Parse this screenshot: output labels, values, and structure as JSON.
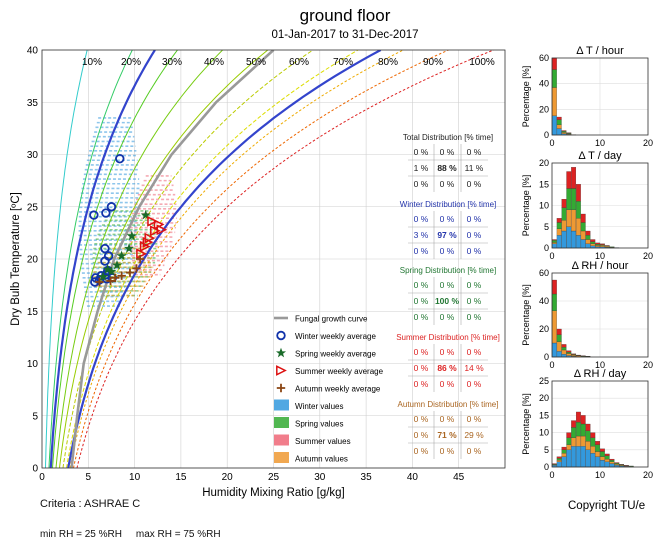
{
  "title": "ground floor",
  "subtitle": "01-Jan-2017 to 31-Dec-2017",
  "criteria": "Criteria : ASHRAE C",
  "limits": "min RH = 25 %RH     max RH = 75 %RH",
  "copyright": "Copyright TU/e",
  "chart_data": [
    {
      "type": "scatter",
      "name": "psychrometric-chart",
      "xlabel": "Humidity Mixing Ratio [g/kg]",
      "ylabel": "Dry Bulb Temperature [ºC]",
      "xlim": [
        0,
        50
      ],
      "ylim": [
        0,
        40
      ],
      "xticks": [
        0,
        5,
        10,
        15,
        20,
        25,
        30,
        35,
        40,
        45
      ],
      "yticks": [
        0,
        5,
        10,
        15,
        20,
        25,
        30,
        35,
        40
      ],
      "grid": true,
      "rh_labels": [
        "10%",
        "20%",
        "30%",
        "40%",
        "50%",
        "60%",
        "70%",
        "80%",
        "90%",
        "100%"
      ],
      "rh_curves": [
        {
          "rh": 10,
          "color": "#33cccc"
        },
        {
          "rh": 20,
          "color": "#33cc66"
        },
        {
          "rh": 30,
          "color": "#55cc22"
        },
        {
          "rh": 40,
          "color": "#77cc11"
        },
        {
          "rh": 50,
          "color": "#99cc00"
        },
        {
          "rh": 60,
          "color": "#bbcc00"
        },
        {
          "rh": 70,
          "color": "#dddd00"
        },
        {
          "rh": 80,
          "color": "#eeaa00"
        },
        {
          "rh": 90,
          "color": "#ee6600"
        },
        {
          "rh": 100,
          "color": "#dd2222"
        }
      ],
      "criteria_curves": [
        {
          "rh": 25,
          "color": "#3344cc"
        },
        {
          "rh": 75,
          "color": "#3344cc"
        }
      ],
      "fungal_curve": [
        [
          3.2,
          0
        ],
        [
          3.8,
          5
        ],
        [
          4.5,
          10
        ],
        [
          6.0,
          15
        ],
        [
          7.8,
          20
        ],
        [
          10.5,
          25
        ],
        [
          14.0,
          30
        ],
        [
          18.8,
          35
        ],
        [
          25.0,
          40
        ]
      ],
      "series": [
        {
          "name": "Winter weekly average",
          "color": "#1133aa",
          "marker": "circle",
          "points": [
            [
              5.7,
              17.8
            ],
            [
              5.8,
              18.2
            ],
            [
              6.4,
              18.4
            ],
            [
              6.9,
              18.5
            ],
            [
              7.1,
              18.9
            ],
            [
              6.8,
              19.8
            ],
            [
              7.2,
              20.3
            ],
            [
              6.8,
              21.0
            ],
            [
              5.6,
              24.2
            ],
            [
              6.9,
              24.4
            ],
            [
              7.5,
              25.0
            ],
            [
              8.4,
              29.6
            ],
            [
              6.2,
              18.0
            ],
            [
              7.6,
              18.2
            ],
            [
              7.0,
              18.1
            ]
          ]
        },
        {
          "name": "Spring weekly average",
          "color": "#1a6b2a",
          "marker": "star",
          "points": [
            [
              6.6,
              18.3
            ],
            [
              7.5,
              18.8
            ],
            [
              8.1,
              19.4
            ],
            [
              8.6,
              20.3
            ],
            [
              9.4,
              21.0
            ],
            [
              9.7,
              22.2
            ],
            [
              11.2,
              24.2
            ],
            [
              7.1,
              19.0
            ]
          ]
        },
        {
          "name": "Summer weekly average",
          "color": "#dd1111",
          "marker": "triangle",
          "points": [
            [
              10.7,
              20.5
            ],
            [
              11.1,
              21.2
            ],
            [
              11.6,
              22.0
            ],
            [
              12.2,
              22.7
            ],
            [
              12.6,
              23.3
            ],
            [
              11.9,
              23.6
            ],
            [
              12.9,
              22.8
            ],
            [
              11.4,
              21.6
            ]
          ]
        },
        {
          "name": "Autumn weekly average",
          "color": "#8b4513",
          "marker": "plus",
          "points": [
            [
              6.2,
              17.8
            ],
            [
              7.4,
              17.9
            ],
            [
              8.6,
              18.4
            ],
            [
              9.5,
              18.7
            ],
            [
              10.2,
              19.1
            ],
            [
              10.6,
              20.0
            ],
            [
              7.9,
              18.2
            ]
          ]
        }
      ],
      "legend": [
        "Fungal growth curve",
        "Winter weekly average",
        "Spring weekly average",
        "Summer weekly average",
        "Autumn weekly average",
        "Winter values",
        "Spring values",
        "Summer values",
        "Autumn values"
      ],
      "legend_colors": [
        "#999999",
        "#1133aa",
        "#1a6b2a",
        "#dd1111",
        "#8b4513",
        "#3399dd",
        "#33aa33",
        "#ee6677",
        "#ee9933"
      ],
      "distributions": [
        {
          "title": "Total Distribution [% time]",
          "color": "#222222",
          "rows": [
            [
              "0 %",
              "0 %",
              "0 %"
            ],
            [
              "1 %",
              "88 %",
              "11 %"
            ],
            [
              "0 %",
              "0 %",
              "0 %"
            ]
          ]
        },
        {
          "title": "Winter Distribution [% time]",
          "color": "#2233aa",
          "rows": [
            [
              "0 %",
              "0 %",
              "0 %"
            ],
            [
              "3 %",
              "97 %",
              "0 %"
            ],
            [
              "0 %",
              "0 %",
              "0 %"
            ]
          ]
        },
        {
          "title": "Spring Distribution [% time]",
          "color": "#227733",
          "rows": [
            [
              "0 %",
              "0 %",
              "0 %"
            ],
            [
              "0 %",
              "100 %",
              "0 %"
            ],
            [
              "0 %",
              "0 %",
              "0 %"
            ]
          ]
        },
        {
          "title": "Summer Distribution [% time]",
          "color": "#dd2222",
          "rows": [
            [
              "0 %",
              "0 %",
              "0 %"
            ],
            [
              "0 %",
              "86 %",
              "14 %"
            ],
            [
              "0 %",
              "0 %",
              "0 %"
            ]
          ]
        },
        {
          "title": "Autumn Distribution [% time]",
          "color": "#aa6622",
          "rows": [
            [
              "0 %",
              "0 %",
              "0 %"
            ],
            [
              "0 %",
              "71 %",
              "29 %"
            ],
            [
              "0 %",
              "0 %",
              "0 %"
            ]
          ]
        }
      ]
    },
    {
      "type": "bar",
      "name": "delta-t-hour",
      "title": "Δ T / hour",
      "ylabel": "Percentage [%]",
      "xlim": [
        0,
        20
      ],
      "ylim": [
        0,
        60
      ],
      "xticks": [
        0,
        10,
        20
      ],
      "yticks": [
        0,
        20,
        40,
        60
      ],
      "bins": [
        0.5,
        1.5,
        2.5,
        3.5,
        4.5,
        5.5
      ],
      "stacks": {
        "winter": [
          15,
          5,
          1,
          0.5,
          0,
          0
        ],
        "spring": [
          14,
          4,
          1,
          0.5,
          0,
          0
        ],
        "summer": [
          9,
          2,
          0.5,
          0.3,
          0,
          0
        ],
        "autumn": [
          22,
          3,
          1,
          0.5,
          0.3,
          0
        ]
      }
    },
    {
      "type": "bar",
      "name": "delta-t-day",
      "title": "Δ T / day",
      "ylabel": "Percentage [%]",
      "xlim": [
        0,
        20
      ],
      "ylim": [
        0,
        20
      ],
      "xticks": [
        0,
        10,
        20
      ],
      "yticks": [
        0,
        5,
        10,
        15,
        20
      ],
      "bins": [
        0.5,
        1.5,
        2.5,
        3.5,
        4.5,
        5.5,
        6.5,
        7.5,
        8.5,
        9.5,
        10.5,
        11.5,
        12.5,
        13.5
      ],
      "stacks": {
        "winter": [
          1,
          3,
          4,
          5,
          4,
          3,
          2,
          1,
          0.5,
          0.3,
          0.3,
          0.2,
          0.1,
          0.1
        ],
        "spring": [
          0.5,
          1.5,
          3,
          5,
          5,
          4,
          2,
          1,
          0.5,
          0.3,
          0.2,
          0.1,
          0.1,
          0
        ],
        "summer": [
          0.2,
          1,
          2,
          4,
          5,
          4,
          2,
          1,
          0.5,
          0.3,
          0.2,
          0.1,
          0,
          0
        ],
        "autumn": [
          0.3,
          1.5,
          2.5,
          4,
          5,
          4,
          2,
          1,
          0.5,
          0.3,
          0.3,
          0.2,
          0.1,
          0
        ]
      }
    },
    {
      "type": "bar",
      "name": "delta-rh-hour",
      "title": "Δ RH / hour",
      "ylabel": "Percentage [%]",
      "xlim": [
        0,
        20
      ],
      "ylim": [
        0,
        60
      ],
      "xticks": [
        0,
        10,
        20
      ],
      "yticks": [
        0,
        20,
        40,
        60
      ],
      "bins": [
        0.5,
        1.5,
        2.5,
        3.5,
        4.5,
        5.5,
        6.5,
        7.5
      ],
      "stacks": {
        "winter": [
          10,
          4,
          2,
          1,
          0.5,
          0.3,
          0.2,
          0.1
        ],
        "spring": [
          12,
          5,
          2,
          1,
          0.5,
          0.3,
          0.2,
          0.1
        ],
        "summer": [
          10,
          4,
          2,
          1,
          0.5,
          0.3,
          0.2,
          0.1
        ],
        "autumn": [
          23,
          7,
          3,
          1.5,
          0.8,
          0.5,
          0.3,
          0.2
        ]
      }
    },
    {
      "type": "bar",
      "name": "delta-rh-day",
      "title": "Δ RH / day",
      "ylabel": "Percentage [%]",
      "xlim": [
        0,
        20
      ],
      "ylim": [
        0,
        25
      ],
      "xticks": [
        0,
        10,
        20
      ],
      "yticks": [
        0,
        5,
        10,
        15,
        20,
        25
      ],
      "bins": [
        0.5,
        1.5,
        2.5,
        3.5,
        4.5,
        5.5,
        6.5,
        7.5,
        8.5,
        9.5,
        10.5,
        11.5,
        12.5,
        13.5,
        14.5,
        15.5,
        16.5
      ],
      "stacks": {
        "winter": [
          0.5,
          1.5,
          3,
          5,
          6,
          6,
          6,
          5,
          4,
          3,
          2,
          1.5,
          1,
          0.5,
          0.3,
          0.2,
          0.1
        ],
        "spring": [
          0.2,
          0.5,
          1,
          2,
          3,
          4,
          3.5,
          3,
          2.5,
          2,
          1.5,
          1,
          0.5,
          0.3,
          0.2,
          0.1,
          0.1
        ],
        "summer": [
          0.2,
          0.5,
          0.8,
          1.5,
          2,
          3,
          2.5,
          2,
          1.5,
          1,
          0.8,
          0.5,
          0.3,
          0.2,
          0.1,
          0.1,
          0
        ],
        "autumn": [
          0.1,
          0.5,
          1,
          1.5,
          2.5,
          3,
          3,
          2.5,
          2,
          1.5,
          1,
          0.8,
          0.5,
          0.3,
          0.2,
          0.1,
          0.1
        ]
      }
    }
  ]
}
